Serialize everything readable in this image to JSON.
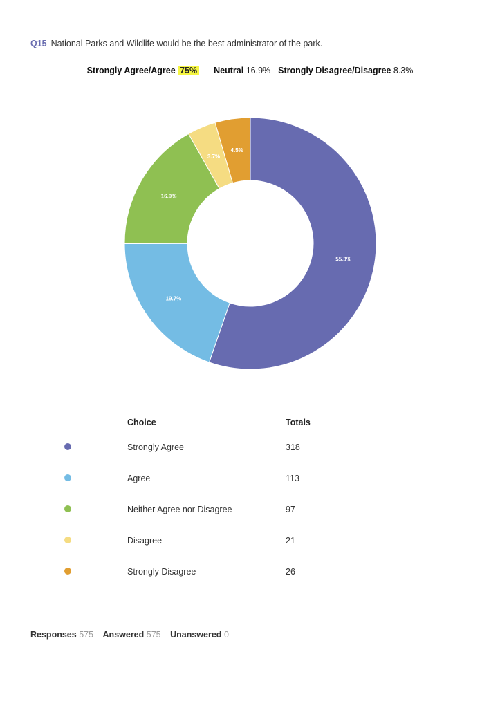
{
  "question": {
    "number": "Q15",
    "text": "National Parks and Wildlife would be the best administrator of the park."
  },
  "summary": {
    "agree_label": "Strongly Agree/Agree",
    "agree_value": "75%",
    "neutral_label": "Neutral",
    "neutral_value": "16.9%",
    "disagree_label": "Strongly Disagree/Disagree",
    "disagree_value": "8.3%"
  },
  "table": {
    "choice_header": "Choice",
    "totals_header": "Totals"
  },
  "footer": {
    "responses_label": "Responses",
    "responses_value": "575",
    "answered_label": "Answered",
    "answered_value": "575",
    "unanswered_label": "Unanswered",
    "unanswered_value": "0"
  },
  "chart_data": {
    "type": "pie",
    "donut": true,
    "categories": [
      "Strongly Agree",
      "Agree",
      "Neither Agree nor Disagree",
      "Disagree",
      "Strongly Disagree"
    ],
    "values": [
      318,
      113,
      97,
      21,
      26
    ],
    "percent_labels": [
      "55.3%",
      "19.7%",
      "16.9%",
      "3.7%",
      "4.5%"
    ],
    "colors": [
      "#676bb0",
      "#74bce4",
      "#8fc052",
      "#f5dc82",
      "#e19e31"
    ],
    "direction": "clockwise from top"
  }
}
